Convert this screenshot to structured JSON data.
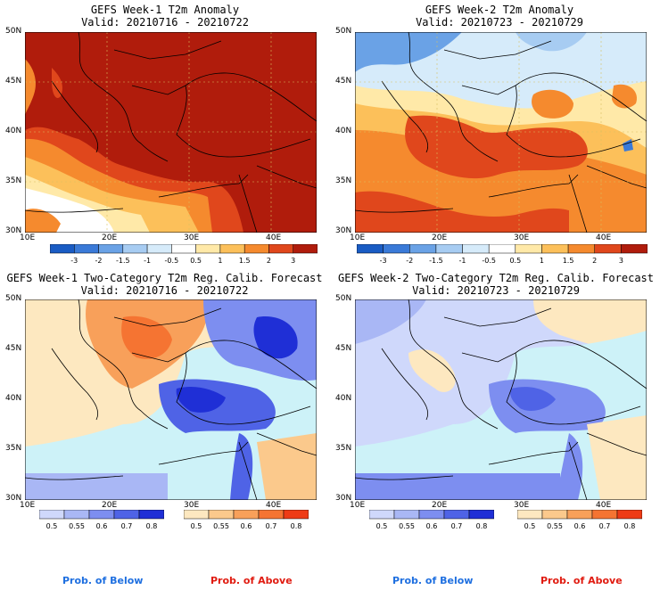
{
  "panels": [
    {
      "title1": "GEFS Week-1 T2m Anomaly",
      "title2": "Valid: 20210716 - 20210722"
    },
    {
      "title1": "GEFS Week-2 T2m Anomaly",
      "title2": "Valid: 20210723 - 20210729"
    },
    {
      "title1": "GEFS Week-1 Two-Category T2m Reg. Calib. Forecast",
      "title2": "Valid: 20210716 - 20210722"
    },
    {
      "title1": "GEFS Week-2 Two-Category T2m Reg. Calib. Forecast",
      "title2": "Valid: 20210723 - 20210729"
    }
  ],
  "lat_labels": [
    "50N",
    "45N",
    "40N",
    "35N",
    "30N"
  ],
  "lon_labels": [
    "10E",
    "20E",
    "30E",
    "40E"
  ],
  "anomaly_legend": {
    "labels": [
      "-3",
      "-2",
      "-1.5",
      "-1",
      "-0.5",
      "0.5",
      "1",
      "1.5",
      "2",
      "3"
    ],
    "colors": [
      "#1a5cc4",
      "#3a7ad8",
      "#6aa2e6",
      "#a7ccf2",
      "#d6ebfa",
      "#ffffff",
      "#ffe9a8",
      "#fcc05a",
      "#f58a2e",
      "#e0471c",
      "#b01c0c"
    ]
  },
  "prob_legend": {
    "labels": [
      "0.5",
      "0.55",
      "0.6",
      "0.7",
      "0.8"
    ],
    "below_colors": [
      "#cfd8fb",
      "#a9b7f5",
      "#7d8ef0",
      "#4f63e6",
      "#1f2fd6"
    ],
    "above_colors": [
      "#fde8c0",
      "#fbc98c",
      "#f8a05a",
      "#f57432",
      "#ee3b16"
    ]
  },
  "prob_text": {
    "below": "Prob. of Below",
    "above": "Prob. of Above"
  },
  "colors": {
    "below_text": "#1e6fe0",
    "above_text": "#e01b10",
    "sea": "#cdf2f8"
  }
}
